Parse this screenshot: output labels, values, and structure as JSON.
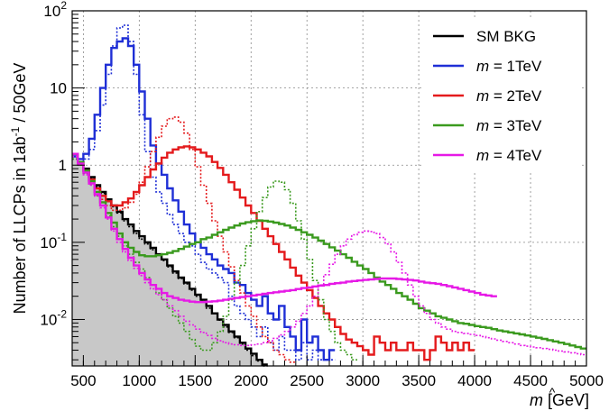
{
  "chart_data": {
    "type": "line",
    "subtype": "step-histogram",
    "xlabel_symbol": "m",
    "xlabel_unit": "[GeV]",
    "ylabel": "Number of LLCPs in 1ab",
    "ylabel_sup": "-1",
    "ylabel_tail": " / 50GeV",
    "xlim": [
      400,
      5000
    ],
    "ylim": [
      0.0025,
      100
    ],
    "y_scale": "log",
    "grid": true,
    "legend_position": "top-right",
    "x_ticks": [
      500,
      1000,
      1500,
      2000,
      2500,
      3000,
      3500,
      4000,
      4500,
      5000
    ],
    "y_ticks": [
      {
        "value": 0.01,
        "base": "10",
        "exp": "-2"
      },
      {
        "value": 0.1,
        "base": "10",
        "exp": "-1"
      },
      {
        "value": 1,
        "base": "1",
        "exp": ""
      },
      {
        "value": 10,
        "base": "10",
        "exp": ""
      },
      {
        "value": 100,
        "base": "10",
        "exp": "2"
      }
    ],
    "legend": [
      {
        "label_plain": "SM BKG",
        "color": "#000000"
      },
      {
        "label_var": "m",
        "label_rest": " = 1TeV",
        "color": "#1f2fd6"
      },
      {
        "label_var": "m",
        "label_rest": " = 2TeV",
        "color": "#e41a1c"
      },
      {
        "label_var": "m",
        "label_rest": " = 3TeV",
        "color": "#3a9a1e"
      },
      {
        "label_var": "m",
        "label_rest": " = 4TeV",
        "color": "#e619e6"
      }
    ],
    "series": [
      {
        "color": "#000000",
        "style": "solid",
        "filled": true,
        "fill_color": "#c8c8c8",
        "bin_start": 400,
        "bin_width": 50,
        "values": [
          1.4,
          1.1,
          0.9,
          0.7,
          0.55,
          0.45,
          0.36,
          0.3,
          0.25,
          0.2,
          0.17,
          0.14,
          0.12,
          0.1,
          0.085,
          0.07,
          0.06,
          0.05,
          0.042,
          0.035,
          0.03,
          0.025,
          0.021,
          0.018,
          0.015,
          0.012,
          0.01,
          0.0085,
          0.007,
          0.006,
          0.005,
          0.0042,
          0.0036,
          0.003,
          0.0026
        ]
      },
      {
        "color": "#000000",
        "style": "dotted",
        "filled": false,
        "bin_start": 400,
        "bin_width": 50,
        "values": [
          1.3,
          1.05,
          0.85,
          0.68,
          0.52,
          0.43,
          0.35,
          0.29,
          0.24,
          0.19,
          0.16,
          0.13,
          0.11,
          0.095,
          0.08,
          0.068,
          0.058,
          0.048,
          0.04,
          0.034,
          0.029,
          0.024,
          0.02,
          0.017,
          0.014,
          0.012,
          0.0098,
          0.008,
          0.0068,
          0.0058,
          0.0048,
          0.004,
          0.0034,
          0.0029,
          0.0025
        ]
      },
      {
        "color": "#1f2fd6",
        "style": "solid",
        "filled": false,
        "bin_start": 400,
        "bin_width": 50,
        "values": [
          1.3,
          1.2,
          1.4,
          2.2,
          4.5,
          10,
          20,
          33,
          40,
          44,
          35,
          20,
          9,
          4,
          1.8,
          1.05,
          0.75,
          0.5,
          0.35,
          0.25,
          0.17,
          0.13,
          0.1,
          0.085,
          0.07,
          0.06,
          0.05,
          0.045,
          0.04,
          0.03,
          0.028,
          0.022,
          0.018,
          0.015,
          0.02,
          0.012,
          0.01,
          0.015,
          0.008,
          0.006,
          0.004,
          0.01,
          0.005,
          0.006,
          0.004,
          0.003,
          0.004
        ]
      },
      {
        "color": "#1f2fd6",
        "style": "dotted",
        "filled": false,
        "bin_start": 400,
        "bin_width": 50,
        "values": [
          1.2,
          1.1,
          1.2,
          1.6,
          2.8,
          6,
          15,
          35,
          60,
          65,
          40,
          15,
          4.5,
          1.5,
          0.7,
          0.45,
          0.32,
          0.23,
          0.17,
          0.13,
          0.1,
          0.09,
          0.07,
          0.055,
          0.045,
          0.04,
          0.035,
          0.03,
          0.02,
          0.015,
          0.012,
          0.01,
          0.008,
          0.006,
          0.008,
          0.005,
          0.004,
          0.006,
          0.004,
          0.004,
          0.003,
          0.005,
          0.003,
          0.004,
          0.003,
          0.003,
          0.003
        ]
      },
      {
        "color": "#e41a1c",
        "style": "solid",
        "filled": false,
        "bin_start": 400,
        "bin_width": 50,
        "values": [
          1.4,
          1.1,
          0.85,
          0.65,
          0.5,
          0.4,
          0.34,
          0.3,
          0.3,
          0.33,
          0.37,
          0.45,
          0.55,
          0.7,
          0.88,
          1.05,
          1.25,
          1.45,
          1.6,
          1.7,
          1.75,
          1.7,
          1.6,
          1.45,
          1.3,
          1.1,
          0.92,
          0.75,
          0.6,
          0.48,
          0.38,
          0.3,
          0.24,
          0.19,
          0.15,
          0.12,
          0.095,
          0.075,
          0.06,
          0.047,
          0.037,
          0.03,
          0.024,
          0.019,
          0.015,
          0.012,
          0.01,
          0.008,
          0.0065,
          0.0055,
          0.005,
          0.0045,
          0.004,
          0.0035,
          0.006,
          0.005,
          0.004,
          0.005,
          0.004,
          0.004,
          0.005,
          0.004,
          0.004,
          0.003,
          0.004,
          0.006,
          0.005,
          0.004,
          0.005,
          0.004,
          0.005,
          0.004
        ]
      },
      {
        "color": "#e41a1c",
        "style": "dotted",
        "filled": false,
        "bin_start": 400,
        "bin_width": 50,
        "values": [
          1.3,
          1.0,
          0.8,
          0.6,
          0.45,
          0.36,
          0.3,
          0.26,
          0.26,
          0.28,
          0.33,
          0.42,
          0.6,
          0.95,
          1.5,
          2.3,
          3.2,
          4.0,
          4.2,
          3.6,
          2.6,
          1.6,
          0.95,
          0.55,
          0.32,
          0.19,
          0.12,
          0.075,
          0.048,
          0.032,
          0.022,
          0.015,
          0.011,
          0.008,
          0.006,
          0.005,
          0.004,
          0.0035,
          0.003,
          0.0028
        ]
      },
      {
        "color": "#3a9a1e",
        "style": "solid",
        "filled": false,
        "bin_start": 400,
        "bin_width": 50,
        "values": [
          1.4,
          1.1,
          0.85,
          0.62,
          0.45,
          0.33,
          0.24,
          0.18,
          0.13,
          0.1,
          0.085,
          0.075,
          0.068,
          0.066,
          0.066,
          0.068,
          0.07,
          0.073,
          0.077,
          0.082,
          0.088,
          0.095,
          0.1,
          0.11,
          0.115,
          0.125,
          0.135,
          0.145,
          0.155,
          0.165,
          0.175,
          0.182,
          0.188,
          0.192,
          0.19,
          0.186,
          0.18,
          0.173,
          0.165,
          0.155,
          0.145,
          0.135,
          0.125,
          0.115,
          0.105,
          0.095,
          0.086,
          0.078,
          0.07,
          0.063,
          0.056,
          0.05,
          0.045,
          0.04,
          0.035,
          0.031,
          0.028,
          0.025,
          0.022,
          0.02,
          0.018,
          0.016,
          0.014,
          0.013,
          0.012,
          0.011,
          0.0105,
          0.01,
          0.0095,
          0.009,
          0.0088,
          0.0085,
          0.0082,
          0.008,
          0.0078,
          0.0075,
          0.0072,
          0.007,
          0.0068,
          0.0066,
          0.0064,
          0.0062,
          0.006,
          0.0058,
          0.0056,
          0.0054,
          0.0052,
          0.005,
          0.0048,
          0.0046,
          0.0044,
          0.0042,
          0.004
        ]
      },
      {
        "color": "#3a9a1e",
        "style": "dotted",
        "filled": false,
        "bin_start": 400,
        "bin_width": 50,
        "values": [
          1.2,
          1.0,
          0.78,
          0.56,
          0.4,
          0.3,
          0.22,
          0.16,
          0.12,
          0.09,
          0.07,
          0.055,
          0.045,
          0.035,
          0.028,
          0.022,
          0.018,
          0.014,
          0.011,
          0.009,
          0.007,
          0.0055,
          0.0045,
          0.004,
          0.004,
          0.005,
          0.007,
          0.011,
          0.018,
          0.03,
          0.05,
          0.09,
          0.15,
          0.25,
          0.38,
          0.52,
          0.62,
          0.6,
          0.48,
          0.32,
          0.19,
          0.11,
          0.06,
          0.032,
          0.018,
          0.01,
          0.007,
          0.005,
          0.004,
          0.0035,
          0.003
        ]
      },
      {
        "color": "#e619e6",
        "style": "solid",
        "filled": false,
        "bin_start": 400,
        "bin_width": 50,
        "values": [
          1.4,
          1.05,
          0.8,
          0.58,
          0.42,
          0.3,
          0.21,
          0.15,
          0.11,
          0.082,
          0.063,
          0.05,
          0.04,
          0.033,
          0.028,
          0.025,
          0.022,
          0.02,
          0.019,
          0.018,
          0.0175,
          0.017,
          0.0168,
          0.0168,
          0.017,
          0.0172,
          0.0175,
          0.018,
          0.0185,
          0.019,
          0.0195,
          0.02,
          0.0205,
          0.021,
          0.0215,
          0.022,
          0.0225,
          0.023,
          0.0235,
          0.024,
          0.0248,
          0.0255,
          0.026,
          0.0268,
          0.0275,
          0.028,
          0.029,
          0.0295,
          0.03,
          0.031,
          0.0315,
          0.032,
          0.0325,
          0.033,
          0.0335,
          0.034,
          0.034,
          0.034,
          0.0335,
          0.033,
          0.0325,
          0.032,
          0.031,
          0.03,
          0.0295,
          0.029,
          0.028,
          0.027,
          0.026,
          0.025,
          0.024,
          0.023,
          0.022,
          0.021,
          0.0205,
          0.02
        ]
      },
      {
        "color": "#e619e6",
        "style": "dotted",
        "filled": false,
        "bin_start": 400,
        "bin_width": 50,
        "values": [
          1.3,
          1.0,
          0.75,
          0.55,
          0.4,
          0.28,
          0.2,
          0.14,
          0.1,
          0.075,
          0.058,
          0.046,
          0.037,
          0.03,
          0.025,
          0.021,
          0.018,
          0.015,
          0.013,
          0.011,
          0.0095,
          0.0085,
          0.0075,
          0.0068,
          0.0062,
          0.0057,
          0.0053,
          0.005,
          0.0048,
          0.0047,
          0.0046,
          0.0046,
          0.0047,
          0.0048,
          0.005,
          0.0053,
          0.0057,
          0.0063,
          0.007,
          0.008,
          0.0095,
          0.012,
          0.015,
          0.02,
          0.028,
          0.038,
          0.052,
          0.07,
          0.09,
          0.11,
          0.125,
          0.135,
          0.14,
          0.138,
          0.13,
          0.115,
          0.095,
          0.075,
          0.055,
          0.04,
          0.028,
          0.02,
          0.015,
          0.012,
          0.01,
          0.009,
          0.008,
          0.0075,
          0.007,
          0.0068,
          0.0066,
          0.0064,
          0.0062,
          0.006,
          0.0058,
          0.0056,
          0.0054,
          0.0052,
          0.005,
          0.0048,
          0.0046,
          0.0045,
          0.0044,
          0.0043,
          0.0042,
          0.0041,
          0.004,
          0.0039,
          0.0038,
          0.0037,
          0.0036,
          0.0035
        ]
      }
    ]
  }
}
